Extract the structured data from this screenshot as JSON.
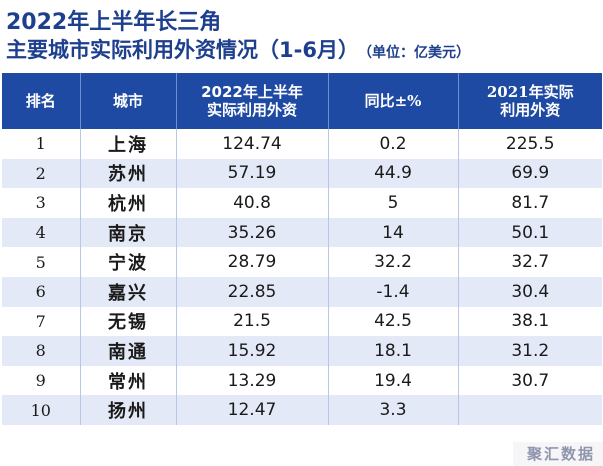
{
  "title_line1": "2022年上半年长三角",
  "title_line2": "主要城市实际利用外资情况（1-6月）",
  "unit_note": "（单位：亿美元）",
  "columns": {
    "rank": "排名",
    "city": "城市",
    "h1_2022_line1": "2022年上半年",
    "h1_2022_line2": "实际利用外资",
    "yoy": "同比±%",
    "y2021_line1": "2021年实际",
    "y2021_line2": "利用外资"
  },
  "rows": [
    {
      "rank": "1",
      "city": "上海",
      "h1_2022": "124.74",
      "yoy": "0.2",
      "y2021": "225.5"
    },
    {
      "rank": "2",
      "city": "苏州",
      "h1_2022": "57.19",
      "yoy": "44.9",
      "y2021": "69.9"
    },
    {
      "rank": "3",
      "city": "杭州",
      "h1_2022": "40.8",
      "yoy": "5",
      "y2021": "81.7"
    },
    {
      "rank": "4",
      "city": "南京",
      "h1_2022": "35.26",
      "yoy": "14",
      "y2021": "50.1"
    },
    {
      "rank": "5",
      "city": "宁波",
      "h1_2022": "28.79",
      "yoy": "32.2",
      "y2021": "32.7"
    },
    {
      "rank": "6",
      "city": "嘉兴",
      "h1_2022": "22.85",
      "yoy": "-1.4",
      "y2021": "30.4"
    },
    {
      "rank": "7",
      "city": "无锡",
      "h1_2022": "21.5",
      "yoy": "42.5",
      "y2021": "38.1"
    },
    {
      "rank": "8",
      "city": "南通",
      "h1_2022": "15.92",
      "yoy": "18.1",
      "y2021": "31.2"
    },
    {
      "rank": "9",
      "city": "常州",
      "h1_2022": "13.29",
      "yoy": "19.4",
      "y2021": "30.7"
    },
    {
      "rank": "10",
      "city": "扬州",
      "h1_2022": "12.47",
      "yoy": "3.3",
      "y2021": ""
    }
  ],
  "watermark": "聚汇数据",
  "colors": {
    "title": "#1d3f8e",
    "header_bg": "#1f4aa3",
    "stripe": "#e3e9f6"
  }
}
